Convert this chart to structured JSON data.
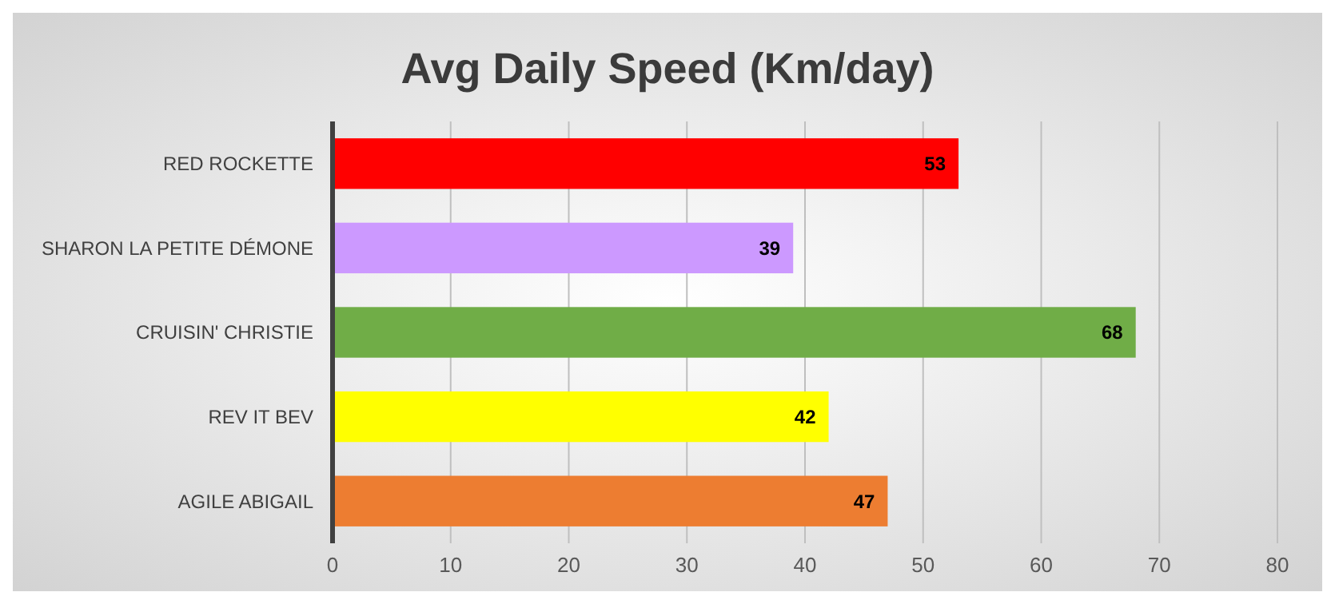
{
  "chart_data": {
    "type": "bar",
    "title": "Avg Daily Speed (Km/day)",
    "orientation": "horizontal",
    "categories": [
      "RED ROCKETTE",
      "SHARON LA PETITE DÉMONE",
      "CRUISIN' CHRISTIE",
      "REV IT BEV",
      "AGILE ABIGAIL"
    ],
    "values": [
      53,
      39,
      68,
      42,
      47
    ],
    "colors": [
      "#ff0000",
      "#cc99ff",
      "#70ad47",
      "#ffff00",
      "#ed7d31"
    ],
    "xlim": [
      0,
      80
    ],
    "xticks": [
      0,
      10,
      20,
      30,
      40,
      50,
      60,
      70,
      80
    ],
    "grid": "x",
    "data_labels": true
  }
}
